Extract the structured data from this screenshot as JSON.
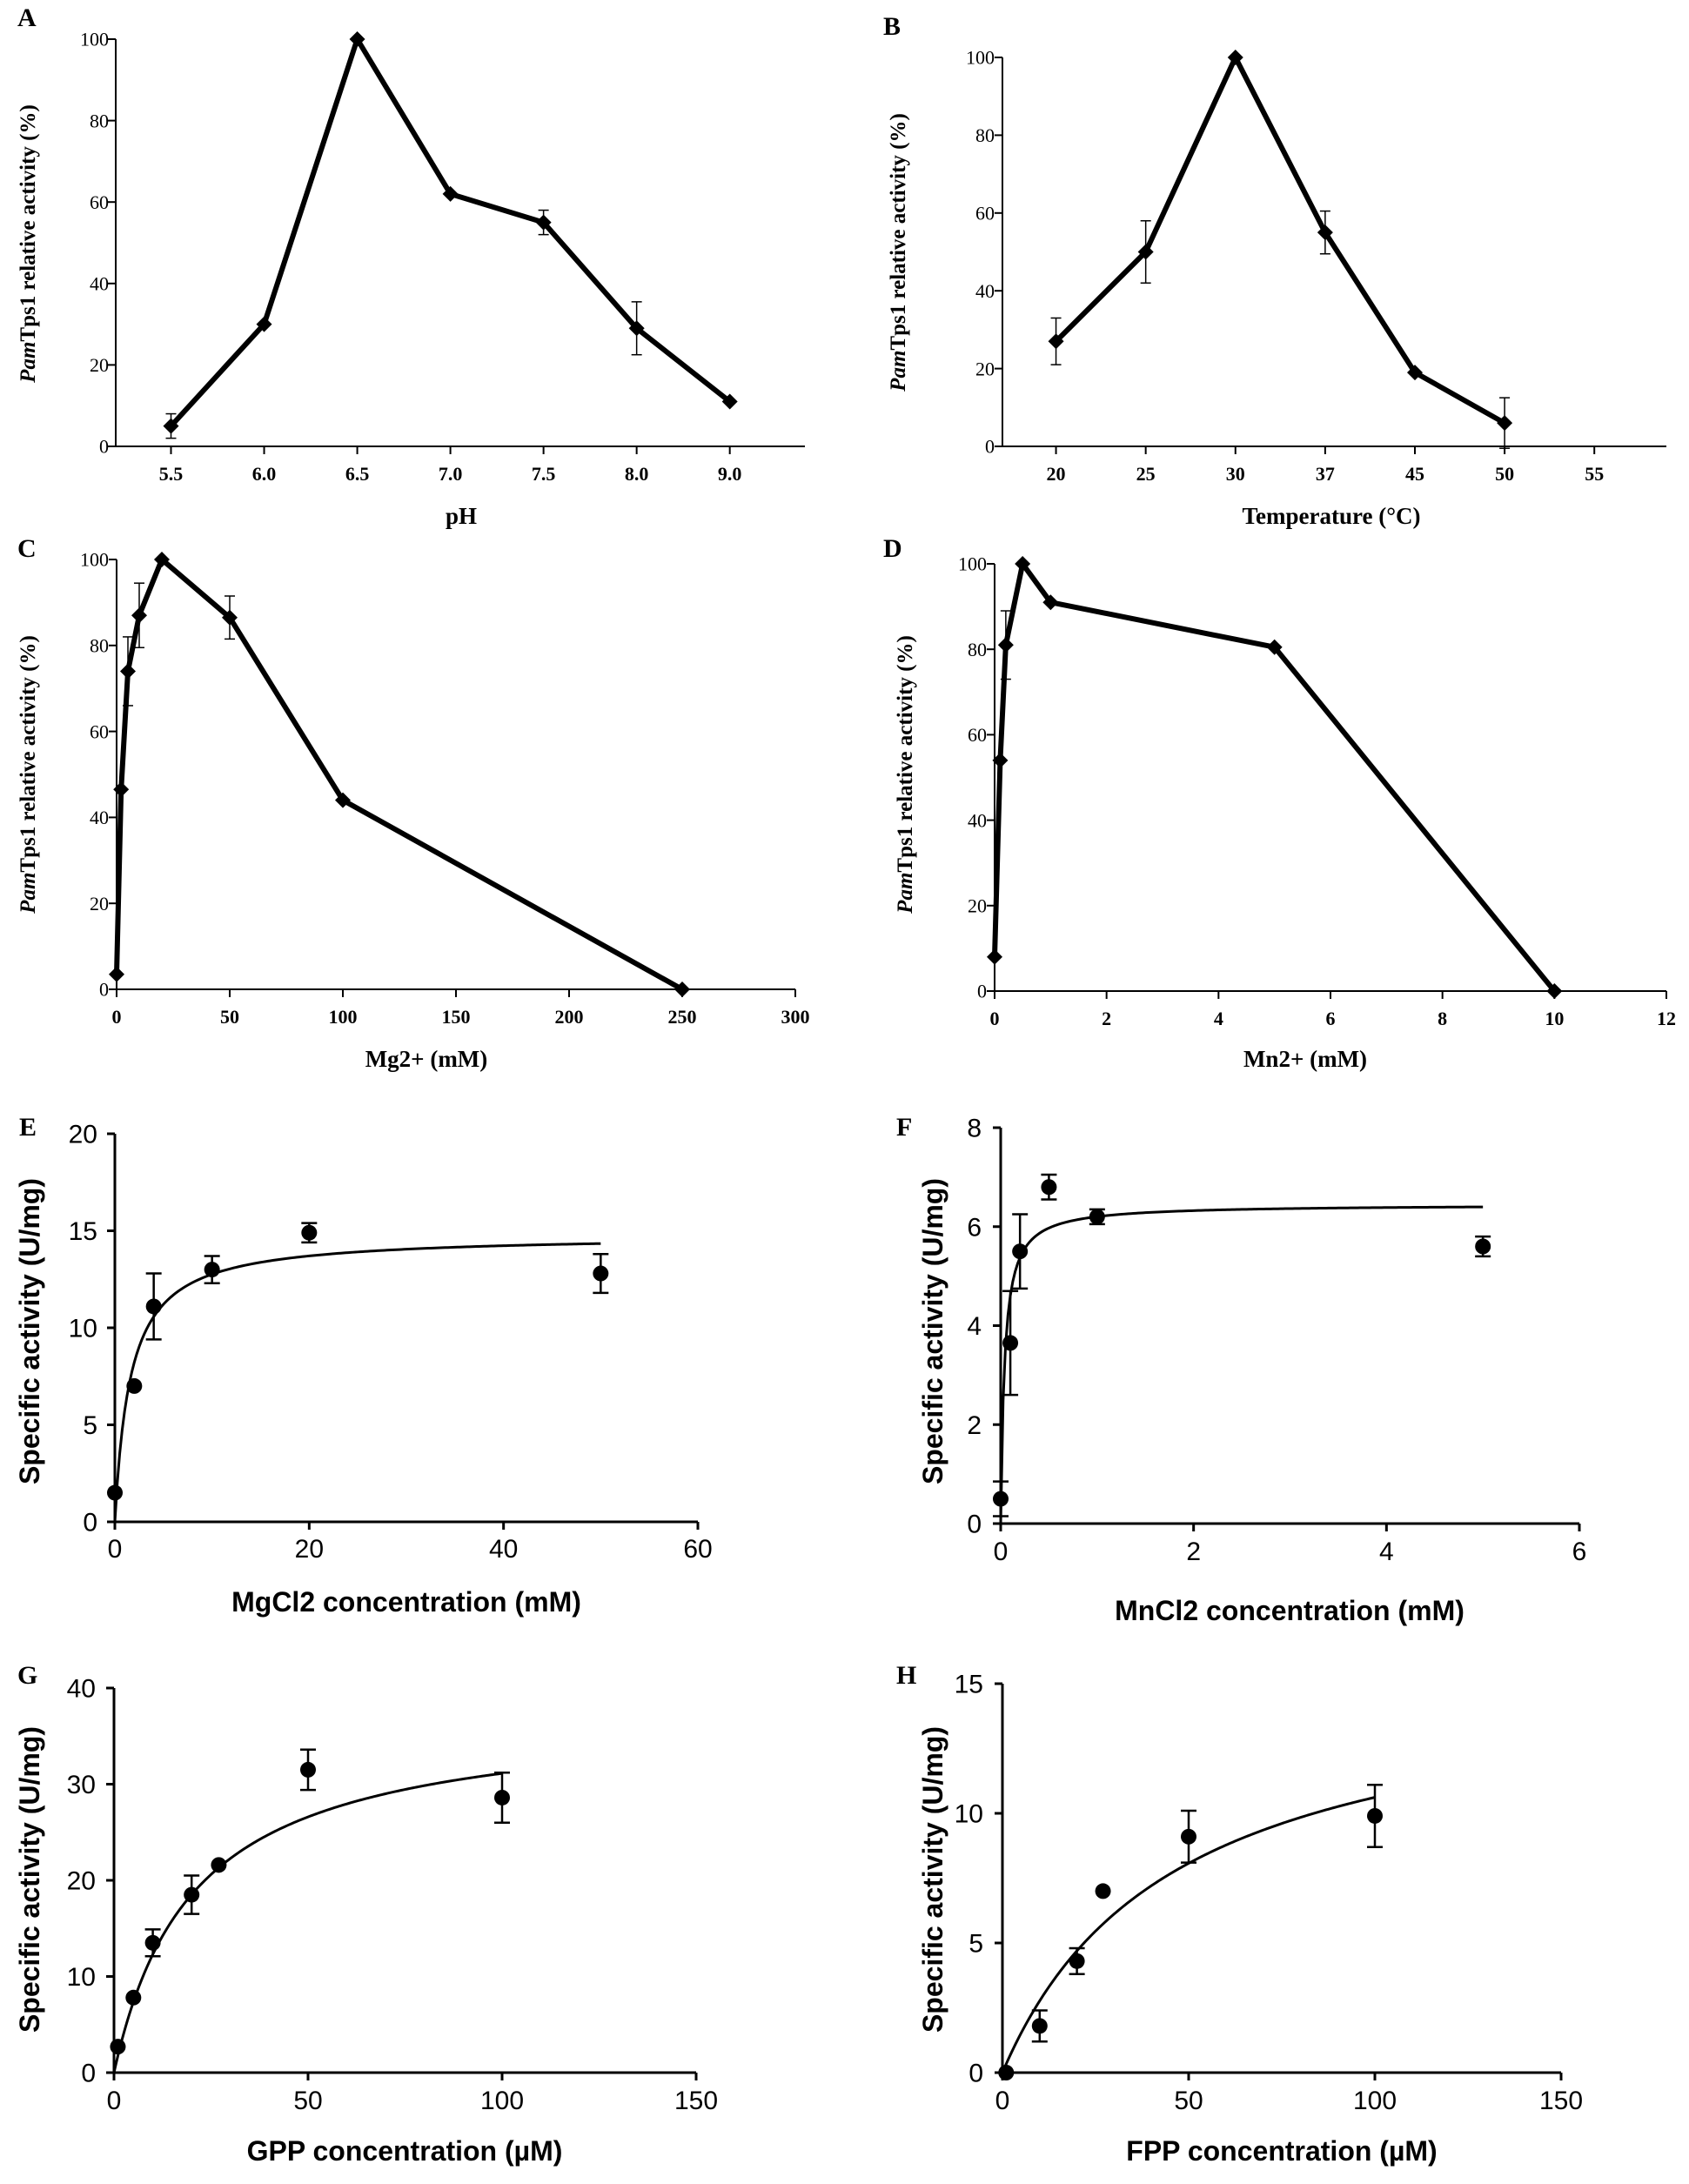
{
  "chart_data": [
    {
      "panel": "A",
      "type": "line",
      "marker": "diamond",
      "categorical": true,
      "xlabel": "pH",
      "ylabel_italic": "Pam",
      "ylabel_rest": "Tps1 relative activity (%)",
      "categories": [
        "5.5",
        "6.0",
        "6.5",
        "7.0",
        "7.5",
        "8.0",
        "9.0"
      ],
      "values": [
        5,
        30,
        100,
        62,
        55,
        29,
        11
      ],
      "errors": [
        3,
        0,
        0,
        0,
        3,
        6.5,
        0
      ],
      "ylim": [
        0,
        100
      ],
      "yticks": [
        "0",
        "20",
        "40",
        "60",
        "80",
        "100"
      ]
    },
    {
      "panel": "B",
      "type": "line",
      "marker": "diamond",
      "categorical": true,
      "xlabel": "Temperature (°C)",
      "ylabel_italic": "Pam",
      "ylabel_rest": "Tps1 relative activity (%)",
      "categories": [
        "20",
        "25",
        "30",
        "37",
        "45",
        "50",
        "55"
      ],
      "values": [
        27,
        50,
        100,
        55,
        19,
        6,
        null
      ],
      "errors": [
        6,
        8,
        0,
        5.5,
        0,
        6.5,
        0
      ],
      "ylim": [
        0,
        100
      ],
      "yticks": [
        "0",
        "20",
        "40",
        "60",
        "80",
        "100"
      ]
    },
    {
      "panel": "C",
      "type": "line",
      "marker": "diamond",
      "xlabel": "Mg2+ (mM)",
      "ylabel_italic": "Pam",
      "ylabel_rest": "Tps1 relative activity (%)",
      "x": [
        0,
        2,
        5,
        10,
        20,
        50,
        100,
        250
      ],
      "values": [
        3.5,
        46.5,
        74,
        87,
        100,
        86.5,
        44,
        0
      ],
      "errors": [
        0,
        0,
        8,
        7.5,
        0,
        5,
        0,
        0
      ],
      "xlim": [
        0,
        300
      ],
      "xticks": [
        "0",
        "50",
        "100",
        "150",
        "200",
        "250",
        "300"
      ],
      "ylim": [
        0,
        100
      ],
      "yticks": [
        "0",
        "20",
        "40",
        "60",
        "80",
        "100"
      ]
    },
    {
      "panel": "D",
      "type": "line",
      "marker": "diamond",
      "xlabel": "Mn2+ (mM)",
      "ylabel_italic": "Pam",
      "ylabel_rest": "Tps1 relative activity (%)",
      "x": [
        0,
        0.1,
        0.2,
        0.5,
        1,
        5,
        10
      ],
      "values": [
        8,
        54,
        81,
        100,
        91,
        80.5,
        0
      ],
      "errors": [
        0,
        0,
        8,
        0,
        0,
        0,
        0
      ],
      "xlim": [
        0,
        12
      ],
      "xticks": [
        "0",
        "2",
        "4",
        "6",
        "8",
        "10",
        "12"
      ],
      "ylim": [
        0,
        100
      ],
      "yticks": [
        "0",
        "20",
        "40",
        "60",
        "80",
        "100"
      ]
    },
    {
      "panel": "E",
      "type": "scatter",
      "marker": "circle",
      "fit": "michaelis-menten",
      "xlabel": "MgCl2 concentration (mM)",
      "ylabel": "Specific activity (U/mg)",
      "x": [
        0,
        2,
        4,
        10,
        20,
        50
      ],
      "values": [
        1.5,
        7,
        11.1,
        13,
        14.9,
        12.8
      ],
      "errors": [
        0,
        0,
        1.7,
        0.7,
        0.5,
        1.0
      ],
      "fit_params": {
        "vmax": 14.8,
        "km": 1.6,
        "xmax": 50
      },
      "xlim": [
        0,
        60
      ],
      "xticks": [
        "0",
        "20",
        "40",
        "60"
      ],
      "ylim": [
        0,
        20
      ],
      "yticks": [
        "0",
        "5",
        "10",
        "15",
        "20"
      ]
    },
    {
      "panel": "F",
      "type": "scatter",
      "marker": "circle",
      "fit": "michaelis-menten",
      "xlabel": "MnCl2 concentration (mM)",
      "ylabel": "Specific activity (U/mg)",
      "x": [
        0,
        0.1,
        0.2,
        0.5,
        1,
        5
      ],
      "values": [
        0.5,
        3.65,
        5.5,
        6.8,
        6.2,
        5.6
      ],
      "errors": [
        0.35,
        1.05,
        0.75,
        0.25,
        0.15,
        0.2
      ],
      "fit_params": {
        "vmax": 6.45,
        "km": 0.04,
        "xmax": 5
      },
      "xlim": [
        0,
        6
      ],
      "xticks": [
        "0",
        "2",
        "4",
        "6"
      ],
      "ylim": [
        0,
        8
      ],
      "yticks": [
        "0",
        "2",
        "4",
        "6",
        "8"
      ]
    },
    {
      "panel": "G",
      "type": "scatter",
      "marker": "circle",
      "fit": "michaelis-menten",
      "xlabel": "GPP concentration (µM)",
      "ylabel": "Specific activity (U/mg)",
      "x": [
        1,
        5,
        10,
        20,
        27,
        50,
        100
      ],
      "values": [
        2.7,
        7.8,
        13.5,
        18.5,
        21.6,
        31.5,
        28.6
      ],
      "errors": [
        0,
        0,
        1.4,
        2.0,
        0,
        2.1,
        2.6
      ],
      "fit_params": {
        "vmax": 37.5,
        "km": 20.5,
        "xmax": 100
      },
      "xlim": [
        0,
        150
      ],
      "xticks": [
        "0",
        "50",
        "100",
        "150"
      ],
      "ylim": [
        0,
        40
      ],
      "yticks": [
        "0",
        "10",
        "20",
        "30",
        "40"
      ]
    },
    {
      "panel": "H",
      "type": "scatter",
      "marker": "circle",
      "fit": "michaelis-menten",
      "xlabel": "FPP concentration (µM)",
      "ylabel": "Specific activity (U/mg)",
      "x": [
        1,
        10,
        20,
        27,
        50,
        100
      ],
      "values": [
        0,
        1.8,
        4.3,
        7,
        9.1,
        9.9
      ],
      "errors": [
        0,
        0.6,
        0.5,
        0,
        1.0,
        1.2
      ],
      "fit_params": {
        "vmax": 15.5,
        "km": 46,
        "xmax": 100
      },
      "xlim": [
        0,
        150
      ],
      "xticks": [
        "0",
        "50",
        "100",
        "150"
      ],
      "ylim": [
        0,
        15
      ],
      "yticks": [
        "0",
        "5",
        "10",
        "15"
      ]
    }
  ]
}
